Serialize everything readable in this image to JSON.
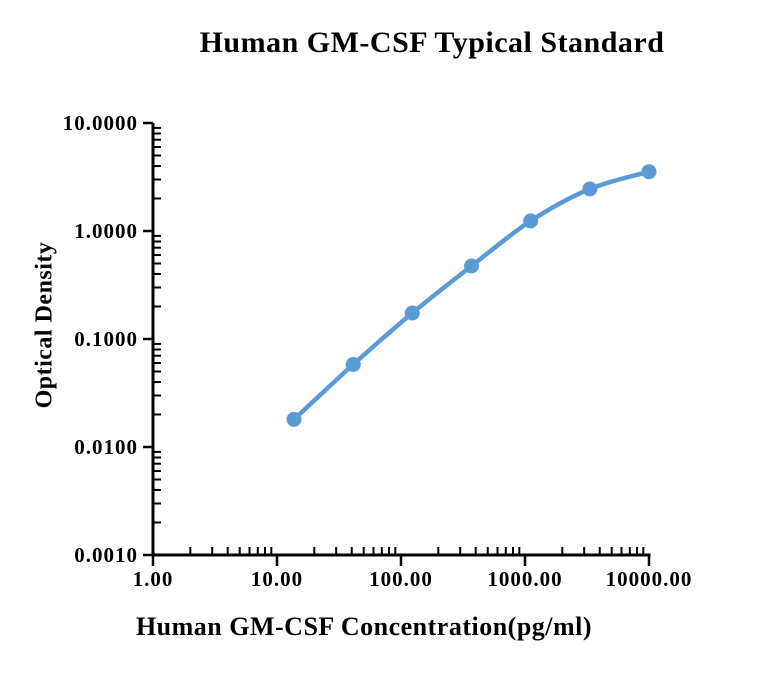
{
  "chart_data": {
    "type": "line",
    "title": "Human GM-CSF Typical Standard",
    "xlabel": "Human GM-CSF Concentration(pg/ml)",
    "ylabel": "Optical Density",
    "x_scale": "log",
    "y_scale": "log",
    "xlim": [
      1,
      10000
    ],
    "ylim": [
      0.001,
      10
    ],
    "grid": false,
    "legend": false,
    "x_ticks": [
      {
        "value": 1,
        "label": "1.00"
      },
      {
        "value": 10,
        "label": "10.00"
      },
      {
        "value": 100,
        "label": "100.00"
      },
      {
        "value": 1000,
        "label": "1000.00"
      },
      {
        "value": 10000,
        "label": "10000.00"
      }
    ],
    "y_ticks": [
      {
        "value": 10,
        "label": "10.0000"
      },
      {
        "value": 1,
        "label": "1.0000"
      },
      {
        "value": 0.1,
        "label": "0.1000"
      },
      {
        "value": 0.01,
        "label": "0.0100"
      },
      {
        "value": 0.001,
        "label": "0.0010"
      }
    ],
    "series": [
      {
        "x": [
          13.72,
          41.15,
          123.46,
          370.37,
          1111.11,
          3333.33,
          10000
        ],
        "y": [
          0.018,
          0.058,
          0.174,
          0.474,
          1.24,
          2.45,
          3.54
        ],
        "color": "#5B9BD5",
        "marker": "circle",
        "smooth": true
      }
    ],
    "colors": {
      "text": "#000000",
      "axis": "#000000",
      "background": "#FFFFFF",
      "series": "#5B9BD5"
    }
  }
}
